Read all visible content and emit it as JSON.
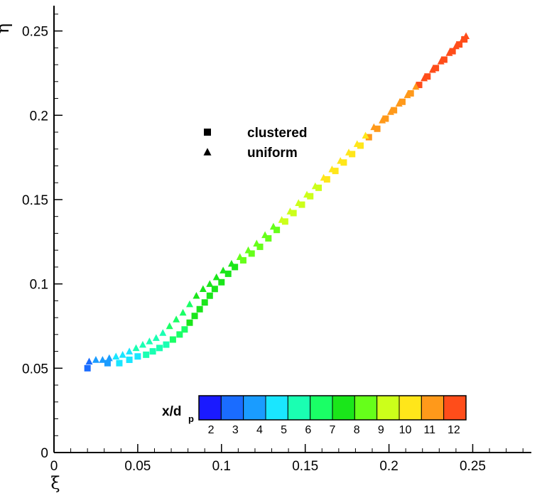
{
  "chart_data": {
    "type": "scatter",
    "xlabel": "ξ",
    "ylabel": "η",
    "xlim": [
      0,
      0.285
    ],
    "ylim": [
      0,
      0.265
    ],
    "x_ticks": [
      {
        "value": 0,
        "label": "0"
      },
      {
        "value": 0.05,
        "label": "0.05"
      },
      {
        "value": 0.1,
        "label": "0.1"
      },
      {
        "value": 0.15,
        "label": "0.15"
      },
      {
        "value": 0.2,
        "label": "0.2"
      },
      {
        "value": 0.25,
        "label": "0.25"
      }
    ],
    "y_ticks": [
      {
        "value": 0,
        "label": "0"
      },
      {
        "value": 0.05,
        "label": "0.05"
      },
      {
        "value": 0.1,
        "label": "0.1"
      },
      {
        "value": 0.15,
        "label": "0.15"
      },
      {
        "value": 0.2,
        "label": "0.2"
      },
      {
        "value": 0.25,
        "label": "0.25"
      }
    ],
    "x_minor_step": 0.01,
    "y_minor_step": 0.01,
    "grid": false,
    "legend_position": "upper-middle",
    "series": [
      {
        "name": "clustered",
        "marker": "square",
        "points": [
          [
            0.02,
            0.05,
            2.5
          ],
          [
            0.032,
            0.053,
            3.8
          ],
          [
            0.039,
            0.053,
            4.3
          ],
          [
            0.045,
            0.055,
            4.7
          ],
          [
            0.05,
            0.057,
            5.0
          ],
          [
            0.055,
            0.058,
            5.3
          ],
          [
            0.059,
            0.06,
            5.6
          ],
          [
            0.063,
            0.062,
            5.8
          ],
          [
            0.067,
            0.064,
            6.0
          ],
          [
            0.071,
            0.067,
            6.3
          ],
          [
            0.075,
            0.07,
            6.6
          ],
          [
            0.078,
            0.073,
            6.8
          ],
          [
            0.081,
            0.077,
            7.0
          ],
          [
            0.084,
            0.081,
            7.1
          ],
          [
            0.087,
            0.085,
            7.2
          ],
          [
            0.09,
            0.089,
            7.3
          ],
          [
            0.093,
            0.093,
            7.4
          ],
          [
            0.096,
            0.097,
            7.5
          ],
          [
            0.1,
            0.101,
            7.6
          ],
          [
            0.104,
            0.106,
            7.7
          ],
          [
            0.108,
            0.11,
            7.8
          ],
          [
            0.113,
            0.114,
            8.0
          ],
          [
            0.118,
            0.118,
            8.2
          ],
          [
            0.123,
            0.122,
            8.4
          ],
          [
            0.128,
            0.127,
            8.6
          ],
          [
            0.133,
            0.132,
            8.8
          ],
          [
            0.138,
            0.137,
            9.0
          ],
          [
            0.143,
            0.142,
            9.2
          ],
          [
            0.148,
            0.147,
            9.4
          ],
          [
            0.153,
            0.152,
            9.5
          ],
          [
            0.158,
            0.157,
            9.7
          ],
          [
            0.163,
            0.162,
            9.9
          ],
          [
            0.168,
            0.167,
            10.1
          ],
          [
            0.173,
            0.172,
            10.3
          ],
          [
            0.178,
            0.177,
            10.5
          ],
          [
            0.183,
            0.182,
            10.6
          ],
          [
            0.188,
            0.187,
            10.7
          ],
          [
            0.193,
            0.192,
            10.8
          ],
          [
            0.198,
            0.198,
            10.9
          ],
          [
            0.203,
            0.203,
            11.1
          ],
          [
            0.208,
            0.208,
            11.3
          ],
          [
            0.213,
            0.213,
            11.5
          ],
          [
            0.218,
            0.218,
            11.6
          ],
          [
            0.223,
            0.223,
            11.8
          ],
          [
            0.228,
            0.228,
            11.9
          ],
          [
            0.233,
            0.233,
            12.0
          ],
          [
            0.238,
            0.238,
            12.2
          ],
          [
            0.242,
            0.242,
            12.3
          ],
          [
            0.245,
            0.245,
            12.4
          ]
        ]
      },
      {
        "name": "uniform",
        "marker": "triangle",
        "points": [
          [
            0.021,
            0.054,
            3.0
          ],
          [
            0.025,
            0.055,
            3.5
          ],
          [
            0.029,
            0.055,
            3.9
          ],
          [
            0.033,
            0.056,
            4.2
          ],
          [
            0.037,
            0.057,
            4.5
          ],
          [
            0.041,
            0.058,
            4.8
          ],
          [
            0.045,
            0.06,
            5.0
          ],
          [
            0.049,
            0.062,
            5.2
          ],
          [
            0.053,
            0.064,
            5.4
          ],
          [
            0.057,
            0.066,
            5.6
          ],
          [
            0.061,
            0.068,
            5.8
          ],
          [
            0.065,
            0.071,
            6.0
          ],
          [
            0.069,
            0.075,
            6.2
          ],
          [
            0.073,
            0.079,
            6.4
          ],
          [
            0.077,
            0.083,
            6.6
          ],
          [
            0.081,
            0.088,
            6.8
          ],
          [
            0.085,
            0.093,
            7.0
          ],
          [
            0.089,
            0.097,
            7.2
          ],
          [
            0.093,
            0.1,
            7.3
          ],
          [
            0.097,
            0.104,
            7.4
          ],
          [
            0.101,
            0.108,
            7.6
          ],
          [
            0.106,
            0.112,
            7.8
          ],
          [
            0.111,
            0.116,
            8.0
          ],
          [
            0.116,
            0.12,
            8.1
          ],
          [
            0.121,
            0.124,
            8.3
          ],
          [
            0.126,
            0.129,
            8.5
          ],
          [
            0.131,
            0.134,
            8.7
          ],
          [
            0.136,
            0.138,
            8.9
          ],
          [
            0.141,
            0.143,
            9.1
          ],
          [
            0.146,
            0.148,
            9.3
          ],
          [
            0.151,
            0.153,
            9.5
          ],
          [
            0.156,
            0.158,
            9.7
          ],
          [
            0.161,
            0.163,
            9.9
          ],
          [
            0.166,
            0.168,
            10.0
          ],
          [
            0.171,
            0.173,
            10.2
          ],
          [
            0.176,
            0.178,
            10.4
          ],
          [
            0.181,
            0.183,
            10.5
          ],
          [
            0.186,
            0.188,
            10.6
          ],
          [
            0.191,
            0.193,
            10.8
          ],
          [
            0.196,
            0.197,
            10.9
          ],
          [
            0.201,
            0.202,
            11.0
          ],
          [
            0.206,
            0.207,
            11.2
          ],
          [
            0.211,
            0.212,
            11.4
          ],
          [
            0.216,
            0.217,
            11.5
          ],
          [
            0.221,
            0.222,
            11.7
          ],
          [
            0.226,
            0.227,
            11.8
          ],
          [
            0.231,
            0.232,
            11.9
          ],
          [
            0.236,
            0.237,
            12.1
          ],
          [
            0.24,
            0.241,
            12.2
          ],
          [
            0.244,
            0.245,
            12.4
          ],
          [
            0.246,
            0.247,
            12.5
          ]
        ]
      }
    ],
    "colorbar": {
      "title": "x/d",
      "title_subscript": "p",
      "min": 1.5,
      "max": 12.5,
      "tick_labels": [
        "2",
        "3",
        "4",
        "5",
        "6",
        "7",
        "8",
        "9",
        "10",
        "11",
        "12"
      ],
      "level_colors": [
        "#1a1aff",
        "#1a6cff",
        "#1a9cff",
        "#1ae6ff",
        "#1affb2",
        "#1aff66",
        "#1ae61a",
        "#66ff1a",
        "#ccff1a",
        "#ffe61a",
        "#ff991a",
        "#ff4d1a"
      ]
    }
  }
}
